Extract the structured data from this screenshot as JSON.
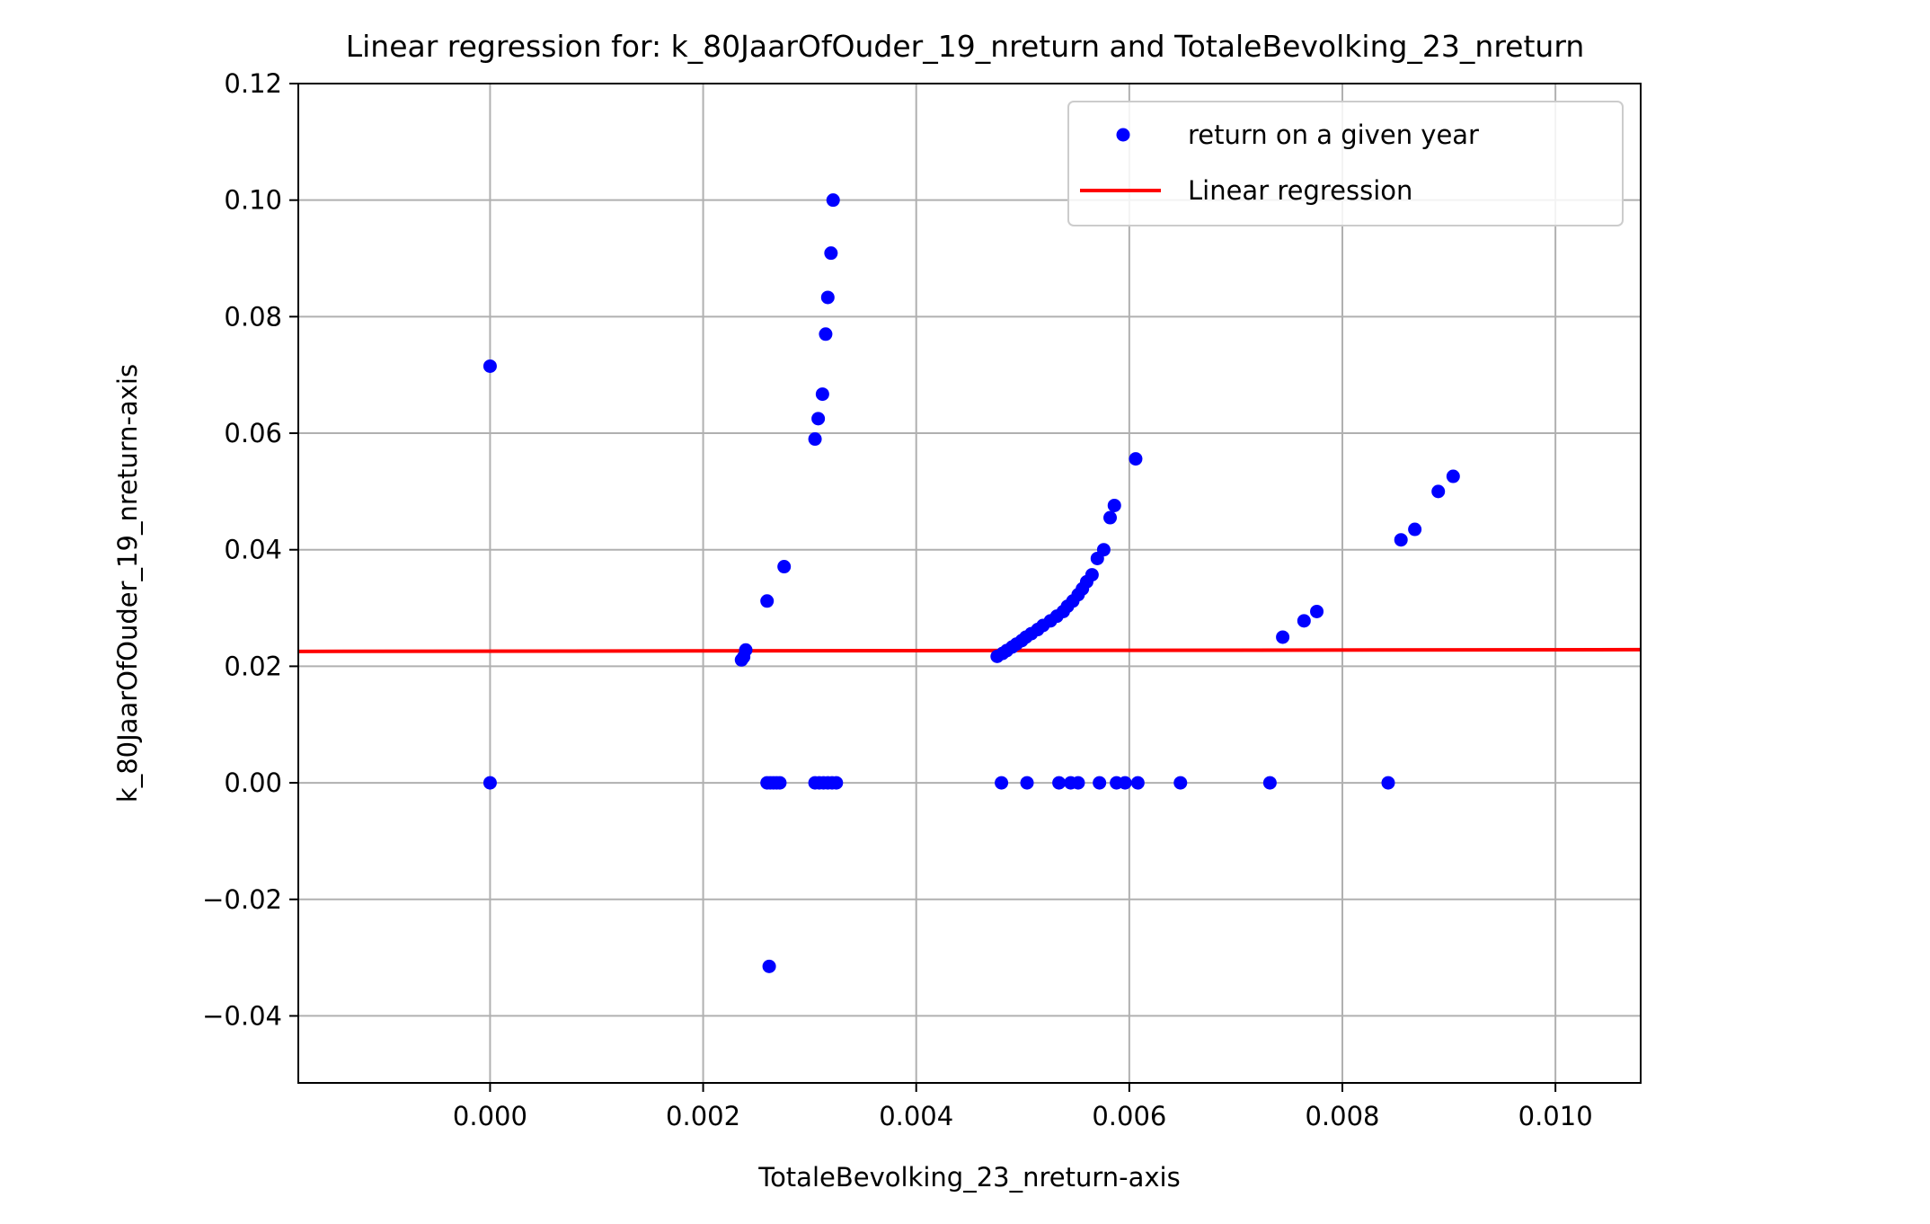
{
  "chart_data": {
    "type": "scatter",
    "title": "Linear regression for: k_80JaarOfOuder_19_nreturn and TotaleBevolking_23_nreturn",
    "xlabel": "TotaleBevolking_23_nreturn-axis",
    "ylabel": "k_80JaarOfOuder_19_nreturn-axis",
    "xlim": [
      -0.0018,
      0.0108
    ],
    "ylim": [
      -0.0515,
      0.12
    ],
    "xticks": [
      0.0,
      0.002,
      0.004,
      0.006,
      0.008,
      0.01
    ],
    "xtick_labels": [
      "0.000",
      "0.002",
      "0.004",
      "0.006",
      "0.008",
      "0.010"
    ],
    "yticks": [
      -0.04,
      -0.02,
      0.0,
      0.02,
      0.04,
      0.06,
      0.08,
      0.1,
      0.12
    ],
    "ytick_labels": [
      "−0.04",
      "−0.02",
      "0.00",
      "0.02",
      "0.04",
      "0.06",
      "0.08",
      "0.10",
      "0.12"
    ],
    "grid": true,
    "legend_position": "top-right",
    "series": [
      {
        "name": "return on a given year",
        "kind": "scatter",
        "color": "#0000ff",
        "points": [
          [
            0.0,
            0.0715
          ],
          [
            0.0,
            0.0
          ],
          [
            0.00236,
            0.0211
          ],
          [
            0.00238,
            0.0216
          ],
          [
            0.0024,
            0.0228
          ],
          [
            0.0026,
            0.0312
          ],
          [
            0.00276,
            0.0371
          ],
          [
            0.00262,
            -0.0315
          ],
          [
            0.0026,
            0.0
          ],
          [
            0.00263,
            0.0
          ],
          [
            0.00266,
            0.0
          ],
          [
            0.00269,
            0.0
          ],
          [
            0.00272,
            0.0
          ],
          [
            0.00305,
            0.059
          ],
          [
            0.00308,
            0.0625
          ],
          [
            0.00312,
            0.0667
          ],
          [
            0.00315,
            0.077
          ],
          [
            0.00317,
            0.0833
          ],
          [
            0.0032,
            0.0909
          ],
          [
            0.00322,
            0.1
          ],
          [
            0.00305,
            0.0
          ],
          [
            0.00309,
            0.0
          ],
          [
            0.00313,
            0.0
          ],
          [
            0.00317,
            0.0
          ],
          [
            0.00321,
            0.0
          ],
          [
            0.00325,
            0.0
          ],
          [
            0.00476,
            0.0217
          ],
          [
            0.00481,
            0.0222
          ],
          [
            0.00485,
            0.0227
          ],
          [
            0.0049,
            0.0233
          ],
          [
            0.00494,
            0.0238
          ],
          [
            0.00499,
            0.0244
          ],
          [
            0.00503,
            0.025
          ],
          [
            0.00508,
            0.0256
          ],
          [
            0.00514,
            0.0263
          ],
          [
            0.00519,
            0.027
          ],
          [
            0.00526,
            0.0278
          ],
          [
            0.00532,
            0.0286
          ],
          [
            0.00538,
            0.0294
          ],
          [
            0.00542,
            0.0303
          ],
          [
            0.00547,
            0.0312
          ],
          [
            0.00552,
            0.0323
          ],
          [
            0.00556,
            0.0333
          ],
          [
            0.0056,
            0.0345
          ],
          [
            0.00565,
            0.0357
          ],
          [
            0.0057,
            0.0385
          ],
          [
            0.00576,
            0.04
          ],
          [
            0.00582,
            0.0455
          ],
          [
            0.00586,
            0.0476
          ],
          [
            0.00606,
            0.0556
          ],
          [
            0.0048,
            0.0
          ],
          [
            0.00504,
            0.0
          ],
          [
            0.00534,
            0.0
          ],
          [
            0.00545,
            0.0
          ],
          [
            0.00552,
            0.0
          ],
          [
            0.00572,
            0.0
          ],
          [
            0.00588,
            0.0
          ],
          [
            0.00596,
            0.0
          ],
          [
            0.00608,
            0.0
          ],
          [
            0.00648,
            0.0
          ],
          [
            0.00732,
            0.0
          ],
          [
            0.00843,
            0.0
          ],
          [
            0.00744,
            0.025
          ],
          [
            0.00764,
            0.0278
          ],
          [
            0.00776,
            0.0294
          ],
          [
            0.00855,
            0.0417
          ],
          [
            0.00868,
            0.0435
          ],
          [
            0.0089,
            0.05
          ],
          [
            0.00904,
            0.0526
          ]
        ]
      },
      {
        "name": "Linear regression",
        "kind": "line",
        "color": "#ff0000",
        "points": [
          [
            -0.0018,
            0.02255
          ],
          [
            0.0108,
            0.02285
          ]
        ]
      }
    ]
  }
}
